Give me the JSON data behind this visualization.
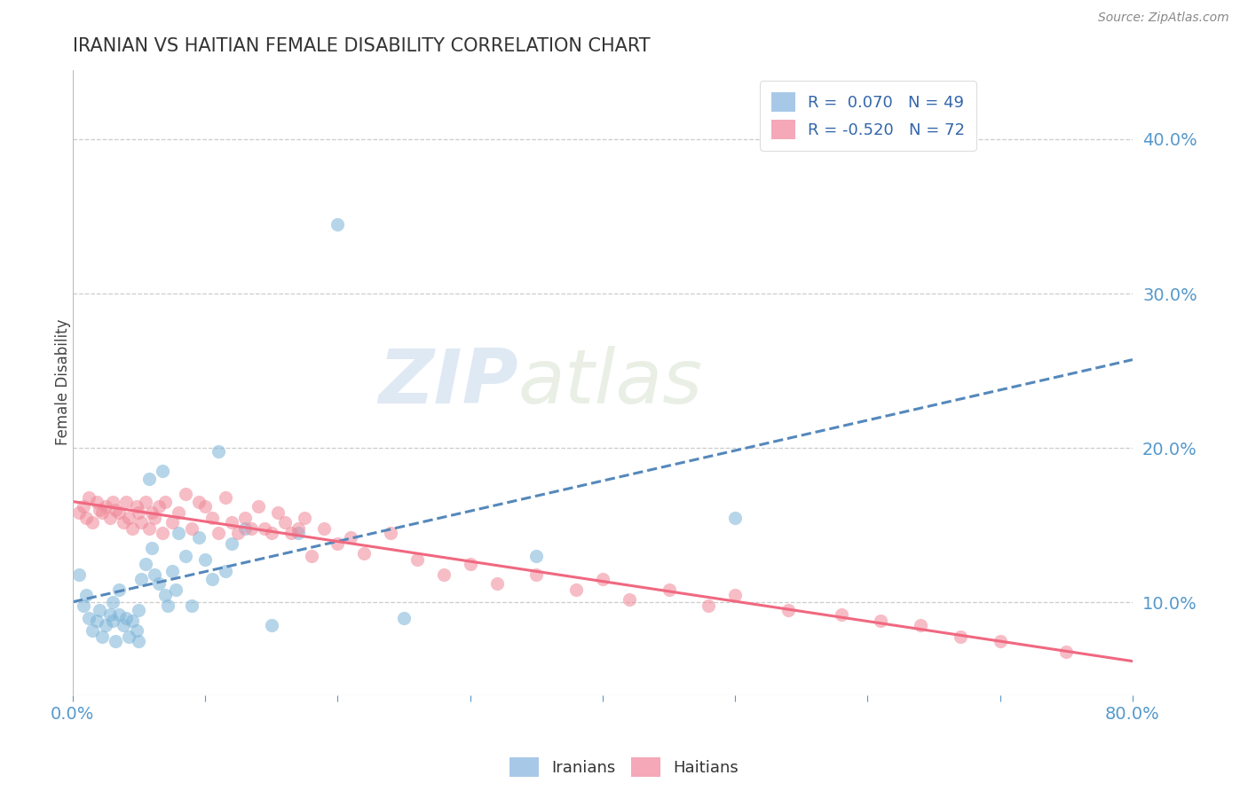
{
  "title": "IRANIAN VS HAITIAN FEMALE DISABILITY CORRELATION CHART",
  "source": "Source: ZipAtlas.com",
  "ylabel": "Female Disability",
  "y_ticks": [
    0.1,
    0.2,
    0.3,
    0.4
  ],
  "y_tick_labels": [
    "10.0%",
    "20.0%",
    "30.0%",
    "40.0%"
  ],
  "xmin": 0.0,
  "xmax": 0.8,
  "ymin": 0.04,
  "ymax": 0.445,
  "iranians_color": "#7ab4d8",
  "haitians_color": "#f08898",
  "trend_iranian_color": "#5588bb",
  "trend_haitian_color": "#f06880",
  "watermark_zip": "ZIP",
  "watermark_atlas": "atlas",
  "background_color": "#ffffff",
  "grid_color": "#cccccc",
  "iranians_x": [
    0.005,
    0.008,
    0.01,
    0.012,
    0.015,
    0.018,
    0.02,
    0.022,
    0.025,
    0.028,
    0.03,
    0.03,
    0.032,
    0.035,
    0.035,
    0.038,
    0.04,
    0.042,
    0.045,
    0.048,
    0.05,
    0.05,
    0.052,
    0.055,
    0.058,
    0.06,
    0.062,
    0.065,
    0.068,
    0.07,
    0.072,
    0.075,
    0.078,
    0.08,
    0.085,
    0.09,
    0.095,
    0.1,
    0.105,
    0.11,
    0.115,
    0.12,
    0.13,
    0.15,
    0.17,
    0.2,
    0.25,
    0.35,
    0.5
  ],
  "iranians_y": [
    0.118,
    0.098,
    0.105,
    0.09,
    0.082,
    0.088,
    0.095,
    0.078,
    0.085,
    0.092,
    0.1,
    0.088,
    0.075,
    0.092,
    0.108,
    0.085,
    0.09,
    0.078,
    0.088,
    0.082,
    0.095,
    0.075,
    0.115,
    0.125,
    0.18,
    0.135,
    0.118,
    0.112,
    0.185,
    0.105,
    0.098,
    0.12,
    0.108,
    0.145,
    0.13,
    0.098,
    0.142,
    0.128,
    0.115,
    0.198,
    0.12,
    0.138,
    0.148,
    0.085,
    0.145,
    0.345,
    0.09,
    0.13,
    0.155
  ],
  "haitians_x": [
    0.005,
    0.008,
    0.01,
    0.012,
    0.015,
    0.018,
    0.02,
    0.022,
    0.025,
    0.028,
    0.03,
    0.032,
    0.035,
    0.038,
    0.04,
    0.042,
    0.045,
    0.048,
    0.05,
    0.052,
    0.055,
    0.058,
    0.06,
    0.062,
    0.065,
    0.068,
    0.07,
    0.075,
    0.08,
    0.085,
    0.09,
    0.095,
    0.1,
    0.105,
    0.11,
    0.115,
    0.12,
    0.125,
    0.13,
    0.135,
    0.14,
    0.145,
    0.15,
    0.155,
    0.16,
    0.165,
    0.17,
    0.175,
    0.18,
    0.19,
    0.2,
    0.21,
    0.22,
    0.24,
    0.26,
    0.28,
    0.3,
    0.32,
    0.35,
    0.38,
    0.4,
    0.42,
    0.45,
    0.48,
    0.5,
    0.54,
    0.58,
    0.61,
    0.64,
    0.67,
    0.7,
    0.75
  ],
  "haitians_y": [
    0.158,
    0.162,
    0.155,
    0.168,
    0.152,
    0.165,
    0.16,
    0.158,
    0.162,
    0.155,
    0.165,
    0.16,
    0.158,
    0.152,
    0.165,
    0.155,
    0.148,
    0.162,
    0.158,
    0.152,
    0.165,
    0.148,
    0.158,
    0.155,
    0.162,
    0.145,
    0.165,
    0.152,
    0.158,
    0.17,
    0.148,
    0.165,
    0.162,
    0.155,
    0.145,
    0.168,
    0.152,
    0.145,
    0.155,
    0.148,
    0.162,
    0.148,
    0.145,
    0.158,
    0.152,
    0.145,
    0.148,
    0.155,
    0.13,
    0.148,
    0.138,
    0.142,
    0.132,
    0.145,
    0.128,
    0.118,
    0.125,
    0.112,
    0.118,
    0.108,
    0.115,
    0.102,
    0.108,
    0.098,
    0.105,
    0.095,
    0.092,
    0.088,
    0.085,
    0.078,
    0.075,
    0.068
  ]
}
